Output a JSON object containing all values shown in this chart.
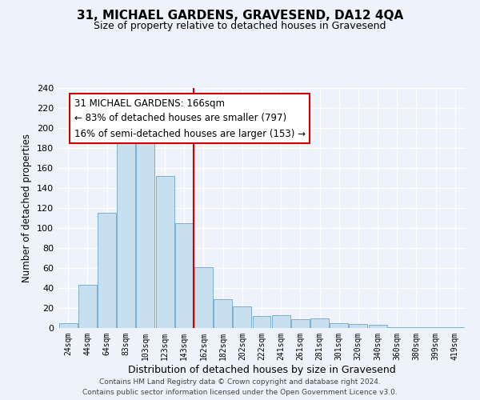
{
  "title": "31, MICHAEL GARDENS, GRAVESEND, DA12 4QA",
  "subtitle": "Size of property relative to detached houses in Gravesend",
  "xlabel": "Distribution of detached houses by size in Gravesend",
  "ylabel": "Number of detached properties",
  "bar_labels": [
    "24sqm",
    "44sqm",
    "64sqm",
    "83sqm",
    "103sqm",
    "123sqm",
    "143sqm",
    "162sqm",
    "182sqm",
    "202sqm",
    "222sqm",
    "241sqm",
    "261sqm",
    "281sqm",
    "301sqm",
    "320sqm",
    "340sqm",
    "360sqm",
    "380sqm",
    "399sqm",
    "419sqm"
  ],
  "bar_values": [
    5,
    43,
    115,
    187,
    187,
    152,
    105,
    61,
    29,
    22,
    12,
    13,
    9,
    10,
    5,
    4,
    3,
    1,
    1,
    1,
    1
  ],
  "bar_color": "#c8dff0",
  "bar_edge_color": "#7ab0d4",
  "vline_color": "#cc0000",
  "vline_index": 7,
  "annotation_title": "31 MICHAEL GARDENS: 166sqm",
  "annotation_line1": "← 83% of detached houses are smaller (797)",
  "annotation_line2": "16% of semi-detached houses are larger (153) →",
  "annotation_box_color": "#ffffff",
  "annotation_box_edge": "#cc0000",
  "footnote1": "Contains HM Land Registry data © Crown copyright and database right 2024.",
  "footnote2": "Contains public sector information licensed under the Open Government Licence v3.0.",
  "ylim": [
    0,
    240
  ],
  "background_color": "#eef2fa",
  "grid_color": "#ffffff",
  "title_fontsize": 11,
  "subtitle_fontsize": 9
}
